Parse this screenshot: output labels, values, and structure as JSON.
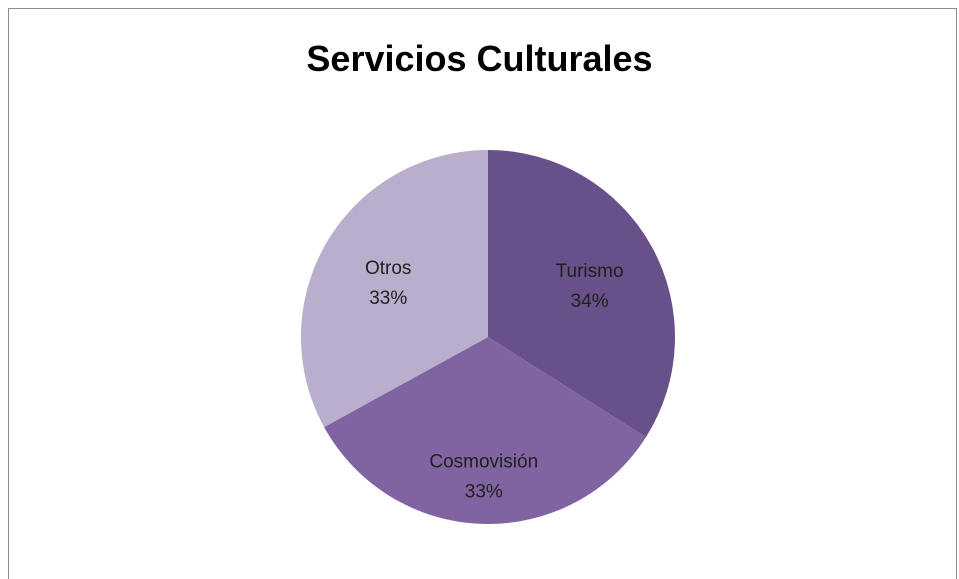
{
  "chart_data": {
    "type": "pie",
    "title": "Servicios Culturales",
    "slices": [
      {
        "label": "Turismo",
        "value": 34,
        "value_label": "34%",
        "color": "#68508a"
      },
      {
        "label": "Cosmovisión",
        "value": 33,
        "value_label": "33%",
        "color": "#8064a2"
      },
      {
        "label": "Otros",
        "value": 33,
        "value_label": "33%",
        "color": "#b9aecb"
      }
    ]
  }
}
